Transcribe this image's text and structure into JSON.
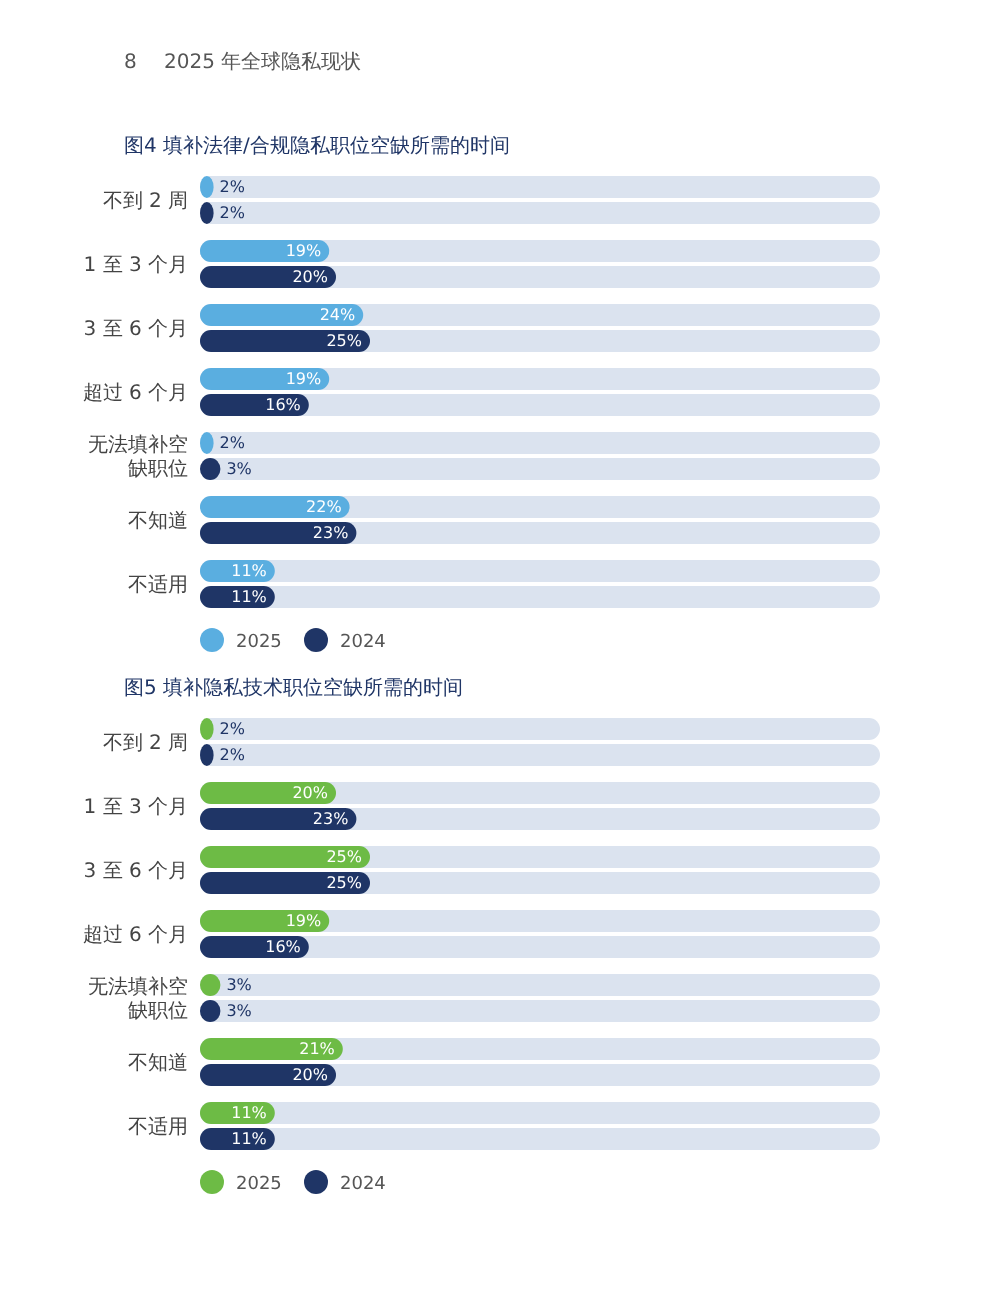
{
  "chart_data": [
    {
      "type": "bar",
      "orientation": "horizontal",
      "title": "图4 填补法律/合规隐私职位空缺所需的时间",
      "annotations": [
        "8",
        "2025 年全球隐私现状"
      ],
      "categories": [
        "不到 2 周",
        "1 至 3 个月",
        "3 至 6 个月",
        "超过 6 个月",
        "无法填补空缺职位",
        "不知道",
        "不适用"
      ],
      "legend": "bottom",
      "tick_labels": "y",
      "series": [
        {
          "name": "2025",
          "color": "#5aaee0",
          "values": [
            2,
            19,
            24,
            19,
            2,
            22,
            11
          ],
          "value_labels": [
            "2%",
            "19%",
            "24%",
            "19%",
            "2%",
            "22%",
            "11%"
          ]
        },
        {
          "name": "2024",
          "color": "#1f3566",
          "values": [
            2,
            20,
            25,
            16,
            3,
            23,
            11
          ],
          "value_labels": [
            "2%",
            "20%",
            "25%",
            "16%",
            "3%",
            "23%",
            "11%"
          ]
        }
      ]
    },
    {
      "type": "bar",
      "orientation": "horizontal",
      "title": "图5 填补隐私技术职位空缺所需的时间",
      "categories": [
        "不到 2 周",
        "1 至 3 个月",
        "3 至 6 个月",
        "超过 6 个月",
        "无法填补空缺职位",
        "不知道",
        "不适用"
      ],
      "legend": "bottom",
      "tick_labels": "y",
      "series": [
        {
          "name": "2025",
          "color": "#6dbb45",
          "values": [
            2,
            20,
            25,
            19,
            3,
            21,
            11
          ],
          "value_labels": [
            "2%",
            "20%",
            "25%",
            "19%",
            "3%",
            "21%",
            "11%"
          ]
        },
        {
          "name": "2024",
          "color": "#1f3566",
          "values": [
            2,
            23,
            25,
            16,
            3,
            20,
            11
          ],
          "value_labels": [
            "2%",
            "23%",
            "25%",
            "16%",
            "3%",
            "20%",
            "11%"
          ]
        }
      ]
    }
  ]
}
